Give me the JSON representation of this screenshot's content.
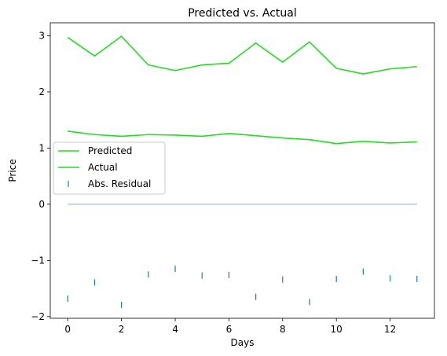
{
  "chart_data": {
    "type": "line",
    "title": "Predicted vs. Actual",
    "xlabel": "Days",
    "ylabel": "Price",
    "xlim": [
      -0.65,
      13.65
    ],
    "ylim": [
      -2.03,
      3.23
    ],
    "x_ticks": [
      0,
      2,
      4,
      6,
      8,
      10,
      12
    ],
    "y_ticks": [
      -2,
      -1,
      0,
      1,
      2,
      3
    ],
    "x_tick_labels": [
      "0",
      "2",
      "4",
      "6",
      "8",
      "10",
      "12"
    ],
    "y_tick_labels": [
      "−2",
      "−1",
      "0",
      "1",
      "2",
      "3"
    ],
    "grid": false,
    "legend_position": "center-left",
    "x": [
      0,
      1,
      2,
      3,
      4,
      5,
      6,
      7,
      8,
      9,
      10,
      11,
      12,
      13
    ],
    "series": [
      {
        "name": "Predicted",
        "kind": "line",
        "color": "#22dd22",
        "values": [
          2.97,
          2.64,
          2.99,
          2.48,
          2.38,
          2.48,
          2.51,
          2.87,
          2.53,
          2.89,
          2.42,
          2.32,
          2.41,
          2.45
        ]
      },
      {
        "name": "Actual",
        "kind": "line",
        "color": "#22dd22",
        "values": [
          1.3,
          1.24,
          1.21,
          1.24,
          1.23,
          1.21,
          1.26,
          1.22,
          1.18,
          1.15,
          1.08,
          1.12,
          1.09,
          1.11
        ]
      },
      {
        "name": "Abs. Residual",
        "kind": "marker",
        "color": "#1f77b4",
        "values": [
          -1.68,
          -1.39,
          -1.79,
          -1.25,
          -1.15,
          -1.27,
          -1.26,
          -1.65,
          -1.34,
          -1.74,
          -1.33,
          -1.2,
          -1.32,
          -1.33
        ]
      }
    ],
    "reference_line": {
      "y": 0,
      "color": "#aec7e8"
    }
  }
}
